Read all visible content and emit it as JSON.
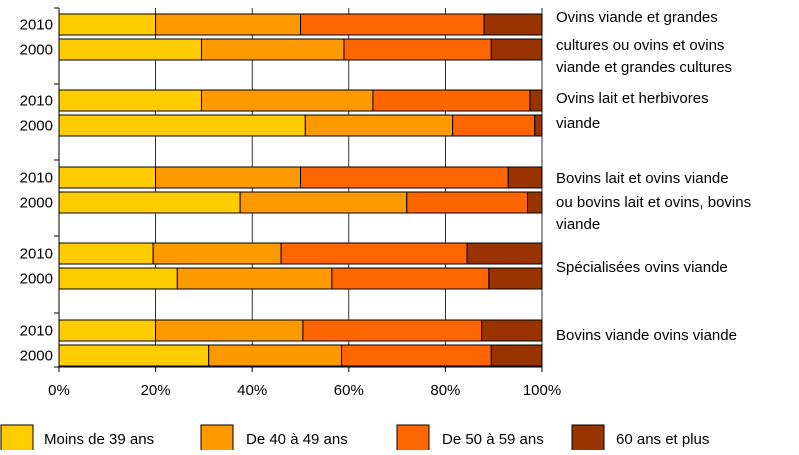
{
  "chart_data": {
    "type": "bar",
    "orientation": "horizontal",
    "stacked": "percent",
    "xlim": [
      0,
      100
    ],
    "x_ticks": [
      "0%",
      "20%",
      "40%",
      "60%",
      "80%",
      "100%"
    ],
    "grid": true,
    "legend_position": "bottom",
    "series": [
      {
        "name": "Moins de 39 ans",
        "color": "#FFCC00"
      },
      {
        "name": "De 40 à 49 ans",
        "color": "#FF9900"
      },
      {
        "name": "De 50 à 59 ans",
        "color": "#FF6600"
      },
      {
        "name": "60 ans et plus",
        "color": "#993300"
      }
    ],
    "groups": [
      {
        "label": "Ovins viande et grandes cultures ou ovins et ovins viande et grandes cultures",
        "label_lines": [
          "Ovins viande et grandes",
          "cultures ou ovins et ovins",
          "viande et grandes cultures"
        ],
        "bars": [
          {
            "year": "2010",
            "values": [
              20,
              30,
              38,
              12
            ]
          },
          {
            "year": "2000",
            "values": [
              29.5,
              29.5,
              30.5,
              10.5
            ]
          }
        ]
      },
      {
        "label": "Ovins lait et herbivores viande",
        "label_lines": [
          "Ovins lait et herbivores",
          "viande"
        ],
        "bars": [
          {
            "year": "2010",
            "values": [
              29.5,
              35.5,
              32.5,
              2.5
            ]
          },
          {
            "year": "2000",
            "values": [
              51,
              30.5,
              17,
              1.5
            ]
          }
        ]
      },
      {
        "label": "Bovins lait et ovins viande ou bovins lait et ovins, bovins viande",
        "label_lines": [
          "Bovins lait et ovins viande",
          "ou bovins lait et ovins, bovins",
          "viande"
        ],
        "bars": [
          {
            "year": "2010",
            "values": [
              20,
              30,
              43,
              7
            ]
          },
          {
            "year": "2000",
            "values": [
              37.5,
              34.5,
              25,
              3
            ]
          }
        ]
      },
      {
        "label": "Spécialisées ovins viande",
        "label_lines": [
          "Spécialisées ovins viande"
        ],
        "bars": [
          {
            "year": "2010",
            "values": [
              19.5,
              26.5,
              38.5,
              15.5
            ]
          },
          {
            "year": "2000",
            "values": [
              24.5,
              32,
              32.5,
              11
            ]
          }
        ]
      },
      {
        "label": "Bovins viande ovins viande",
        "label_lines": [
          "Bovins viande ovins viande"
        ],
        "bars": [
          {
            "year": "2010",
            "values": [
              20,
              30.5,
              37,
              12.5
            ]
          },
          {
            "year": "2000",
            "values": [
              31,
              27.5,
              31,
              10.5
            ]
          }
        ]
      }
    ]
  }
}
